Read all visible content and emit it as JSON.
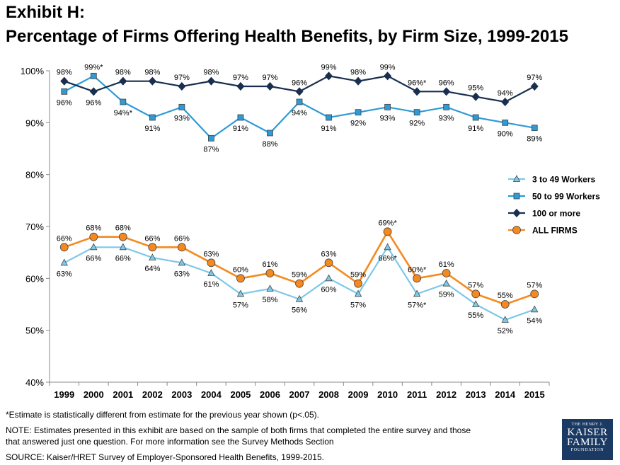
{
  "header": {
    "exhibit": "Exhibit H:",
    "title": "Percentage of Firms Offering Health Benefits, by Firm Size, 1999-2015"
  },
  "chart_data": {
    "type": "line",
    "title": "Percentage of Firms Offering Health Benefits, by Firm Size, 1999-2015",
    "xlabel": "",
    "ylabel": "",
    "categories": [
      "1999",
      "2000",
      "2001",
      "2002",
      "2003",
      "2004",
      "2005",
      "2006",
      "2007",
      "2008",
      "2009",
      "2010",
      "2011",
      "2012",
      "2013",
      "2014",
      "2015"
    ],
    "y_ticks": [
      "40%",
      "50%",
      "60%",
      "70%",
      "80%",
      "90%",
      "100%"
    ],
    "ylim": [
      40,
      100
    ],
    "grid": false,
    "legend_position": "right",
    "series": [
      {
        "name": "3 to 49 Workers",
        "color": "#7ec8e8",
        "marker": "triangle",
        "values": [
          63,
          66,
          66,
          64,
          63,
          61,
          57,
          58,
          56,
          60,
          57,
          66,
          57,
          59,
          55,
          52,
          54
        ],
        "labels": [
          "63%",
          "66%",
          "66%",
          "64%",
          "63%",
          "61%",
          "57%",
          "58%",
          "56%",
          "60%",
          "57%",
          "66%*",
          "57%*",
          "59%",
          "55%",
          "52%",
          "54%"
        ]
      },
      {
        "name": "50 to 99 Workers",
        "color": "#2e9ad6",
        "marker": "square",
        "values": [
          96,
          99,
          94,
          91,
          93,
          87,
          91,
          88,
          94,
          91,
          92,
          93,
          92,
          93,
          91,
          90,
          89
        ],
        "labels": [
          "96%",
          "99%*",
          "94%*",
          "91%",
          "93%",
          "87%",
          "91%",
          "88%",
          "94%",
          "91%",
          "92%",
          "93%",
          "92%",
          "93%",
          "91%",
          "90%",
          "89%"
        ]
      },
      {
        "name": "100 or more",
        "color": "#1a2f4f",
        "marker": "diamond",
        "values": [
          98,
          96,
          98,
          98,
          97,
          98,
          97,
          97,
          96,
          99,
          98,
          99,
          96,
          96,
          95,
          94,
          97
        ],
        "labels": [
          "98%",
          "96%",
          "98%",
          "98%",
          "97%",
          "98%",
          "97%",
          "97%",
          "96%",
          "99%",
          "98%",
          "99%",
          "96%*",
          "96%",
          "95%",
          "94%",
          "97%"
        ]
      },
      {
        "name": "ALL FIRMS",
        "color": "#f5891f",
        "marker": "circle",
        "values": [
          66,
          68,
          68,
          66,
          66,
          63,
          60,
          61,
          59,
          63,
          59,
          69,
          60,
          61,
          57,
          55,
          57
        ],
        "labels": [
          "66%",
          "68%",
          "68%",
          "66%",
          "66%",
          "63%",
          "60%",
          "61%",
          "59%",
          "63%",
          "59%",
          "69%*",
          "60%*",
          "61%",
          "57%",
          "55%",
          "57%"
        ]
      }
    ]
  },
  "footer": {
    "asterisk_note": "*Estimate is statistically different from estimate for the previous year shown (p<.05).",
    "note_line1": "NOTE: Estimates presented in this exhibit are based on the sample of both firms that completed the entire survey and those",
    "note_line2": "that answered just one question. For more information see the Survey Methods Section",
    "source": "SOURCE:  Kaiser/HRET Survey of Employer-Sponsored Health Benefits, 1999-2015."
  },
  "logo": {
    "line1": "THE HENRY J.",
    "line2": "KAISER",
    "line3": "FAMILY",
    "line4": "FOUNDATION"
  }
}
